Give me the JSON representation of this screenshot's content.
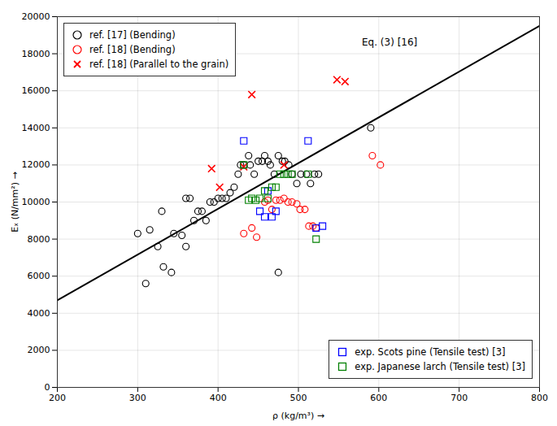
{
  "chart_data": {
    "type": "scatter",
    "xlabel": "ρ (kg/m³)",
    "ylabel": "Eₓ (N/mm²)",
    "xlim": [
      200,
      800
    ],
    "ylim": [
      0,
      20000
    ],
    "xticks": [
      200,
      300,
      400,
      500,
      600,
      700,
      800
    ],
    "yticks": [
      0,
      2000,
      4000,
      6000,
      8000,
      10000,
      12000,
      14000,
      16000,
      18000,
      20000
    ],
    "grid": true,
    "line": {
      "x": [
        200,
        800
      ],
      "values": [
        4700,
        19500
      ],
      "color": "black"
    },
    "annotations": [
      {
        "text": "Eq. (3) [16]",
        "x": 648,
        "y": 18800
      }
    ],
    "series": [
      {
        "name": "ref. [17] (Bending)",
        "color": "black",
        "marker": "circle",
        "legend": "upper left",
        "x": [
          300,
          315,
          325,
          330,
          345,
          355,
          360,
          360,
          365,
          370,
          375,
          380,
          385,
          390,
          395,
          400,
          405,
          410,
          415,
          420,
          425,
          428,
          432,
          438,
          440,
          445,
          450,
          455,
          458,
          462,
          465,
          470,
          475,
          480,
          483,
          488,
          492,
          498,
          503,
          510,
          515,
          520,
          525,
          475,
          590,
          310,
          332,
          342
        ],
        "values": [
          8300,
          8500,
          7600,
          9500,
          8300,
          8200,
          7600,
          10200,
          10200,
          9000,
          9500,
          9500,
          9000,
          10000,
          10000,
          10200,
          10200,
          10200,
          10500,
          10800,
          11500,
          12000,
          12000,
          12500,
          12000,
          11500,
          12200,
          12200,
          12500,
          12200,
          12000,
          11500,
          12500,
          12200,
          12200,
          12000,
          11500,
          11000,
          11500,
          11500,
          11000,
          11500,
          11500,
          6200,
          14000,
          5600,
          6500,
          6200
        ]
      },
      {
        "name": "ref. [18] (Bending)",
        "color": "red",
        "marker": "circle",
        "legend": "upper left",
        "x": [
          432,
          442,
          448,
          458,
          462,
          467,
          472,
          477,
          482,
          487,
          492,
          498,
          502,
          508,
          513,
          518,
          522,
          592,
          602
        ],
        "values": [
          8300,
          8600,
          8100,
          10000,
          10100,
          9600,
          10100,
          10100,
          10200,
          10000,
          10000,
          9900,
          9600,
          9600,
          8700,
          8700,
          8600,
          12500,
          12000
        ]
      },
      {
        "name": "ref. [18] (Parallel to the grain)",
        "color": "red",
        "marker": "x",
        "legend": "upper left",
        "x": [
          392,
          402,
          432,
          442,
          548,
          558,
          482
        ],
        "values": [
          11800,
          10800,
          11900,
          15800,
          16600,
          16500,
          12000
        ]
      },
      {
        "name": "exp. Scots pine (Tensile test) [3]",
        "color": "blue",
        "marker": "square",
        "legend": "lower right",
        "x": [
          432,
          452,
          458,
          462,
          467,
          472,
          512,
          522,
          530
        ],
        "values": [
          13300,
          9500,
          9200,
          10600,
          9200,
          9500,
          13300,
          8600,
          8700
        ]
      },
      {
        "name": "exp. Japanese larch (Tensile test) [3]",
        "color": "green",
        "marker": "square",
        "legend": "lower right",
        "x": [
          432,
          438,
          442,
          447,
          452,
          458,
          462,
          467,
          472,
          477,
          482,
          487,
          492,
          512,
          522
        ],
        "values": [
          12000,
          10100,
          10200,
          10100,
          10200,
          10600,
          10200,
          10800,
          10800,
          11500,
          11500,
          11500,
          11500,
          11500,
          8000
        ]
      }
    ]
  }
}
